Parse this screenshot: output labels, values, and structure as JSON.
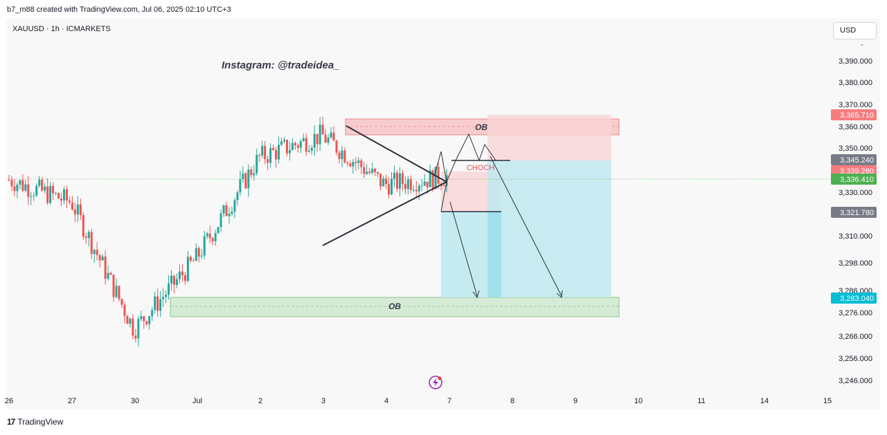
{
  "header": {
    "attribution": "b7_m88 created with TradingView.com, Jul 06, 2025 02:10 UTC+3"
  },
  "symbol_label": "XAUUSD · 1h · ICMARKETS",
  "currency": "USD",
  "watermark": "Instagram: @tradeidea_",
  "footer": {
    "brand": "TradingView"
  },
  "icons": [
    "tradingview-logo-icon",
    "lightning-bolt-icon",
    "chevron-down-icon"
  ],
  "colors": {
    "up": "#26a69a",
    "down": "#ef5350",
    "supply_zone": "#f8c4c8",
    "demand_zone": "#cfe9cf",
    "target_zone": "#bfe9f0",
    "target_price_label": "#00bcd4",
    "current_price_label": "#4caf50",
    "sell_price_label": "#f77c80",
    "neutral_price_label": "#787b86"
  },
  "chart_data": {
    "type": "candlestick",
    "symbol": "XAUUSD",
    "interval": "1h",
    "exchange": "ICMARKETS",
    "x_tick_labels": [
      "26",
      "27",
      "30",
      "Jul",
      "2",
      "3",
      "4",
      "7",
      "8",
      "9",
      "10",
      "11",
      "14",
      "15"
    ],
    "y_tick_labels": [
      "3,390.000",
      "3,380.000",
      "3,370.000",
      "3,360.000",
      "3,350.000",
      "3,330.000",
      "3,310.000",
      "3,298.000",
      "3,286.000",
      "3,276.000",
      "3,266.000",
      "3,256.000",
      "3,246.000"
    ],
    "ylim": [
      3242,
      3397
    ],
    "price_labels": [
      {
        "value": "3,365.710",
        "kind": "sell"
      },
      {
        "value": "3,345.240",
        "kind": "neutral"
      },
      {
        "value": "3,339.280",
        "kind": "sell"
      },
      {
        "value": "3,336.410",
        "kind": "current"
      },
      {
        "value": "3,321.780",
        "kind": "neutral"
      },
      {
        "value": "3,283.040",
        "kind": "target"
      }
    ],
    "annotations": [
      {
        "text": "OB",
        "type": "supply_zone",
        "price_range": [
          3357,
          3364
        ]
      },
      {
        "text": "OB",
        "type": "demand_zone",
        "price_range": [
          3274,
          3283
        ]
      },
      {
        "text": "CHOCH",
        "type": "structure_label",
        "price": 3345.24
      }
    ],
    "approx_close_path": [
      {
        "date": "Jun 26",
        "price": 3335
      },
      {
        "date": "Jun 27",
        "price": 3325
      },
      {
        "date": "Jun 30",
        "price": 3268
      },
      {
        "date": "Jul 1",
        "price": 3300
      },
      {
        "date": "Jul 2",
        "price": 3345
      },
      {
        "date": "Jul 3",
        "price": 3355
      },
      {
        "date": "Jul 4",
        "price": 3333
      },
      {
        "date": "Jul 7",
        "price": 3336.41
      }
    ]
  }
}
